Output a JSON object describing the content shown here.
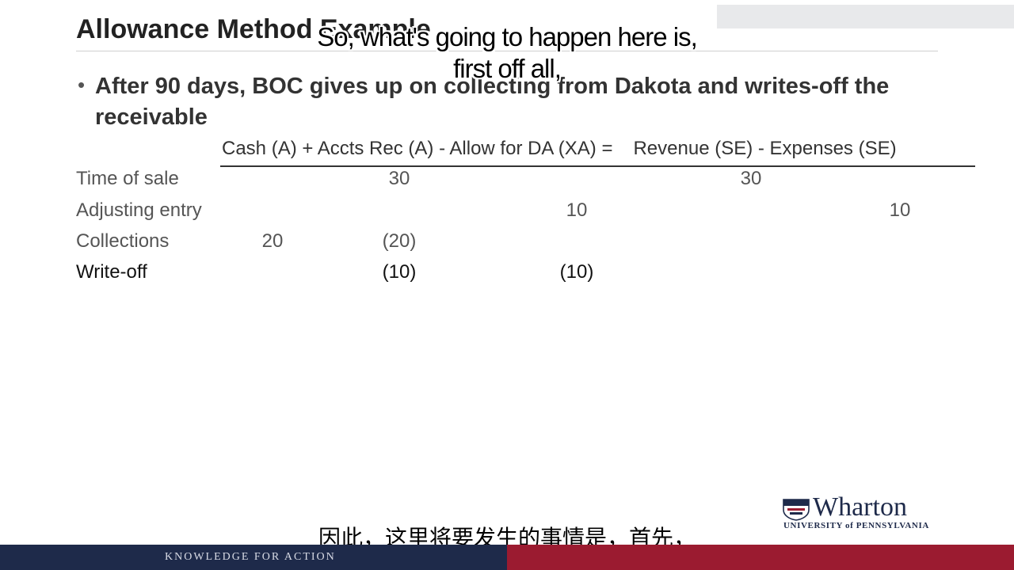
{
  "slide": {
    "title": "Allowance Method Example",
    "bullet": "After 90 days, BOC gives up on collecting from Dakota and writes-off the receivable"
  },
  "table": {
    "header": {
      "left": "Cash (A) + Accts Rec (A) - Allow for DA (XA) =",
      "right": "Revenue (SE) - Expenses (SE)"
    },
    "rows": [
      {
        "label": "Time of sale",
        "cash": "",
        "accts_rec": "30",
        "allow": "",
        "revenue": "30",
        "expenses": ""
      },
      {
        "label": "Adjusting entry",
        "cash": "",
        "accts_rec": "",
        "allow": "10",
        "revenue": "",
        "expenses": "10"
      },
      {
        "label": "Collections",
        "cash": "20",
        "accts_rec": "(20)",
        "allow": "",
        "revenue": "",
        "expenses": ""
      },
      {
        "label": "Write-off",
        "cash": "",
        "accts_rec": "(10)",
        "allow": "(10)",
        "revenue": "",
        "expenses": ""
      }
    ]
  },
  "captions": {
    "en_line1": "So, what's going to happen here is,",
    "en_line2": "first off all,",
    "zh": "因此，这里将要发生的事情是，首先，"
  },
  "branding": {
    "logo_text": "Wharton",
    "logo_subtext": "UNIVERSITY of PENNSYLVANIA",
    "tagline": "KNOWLEDGE FOR ACTION"
  },
  "colors": {
    "navy": "#1e2a4a",
    "crimson": "#9b1b30"
  }
}
